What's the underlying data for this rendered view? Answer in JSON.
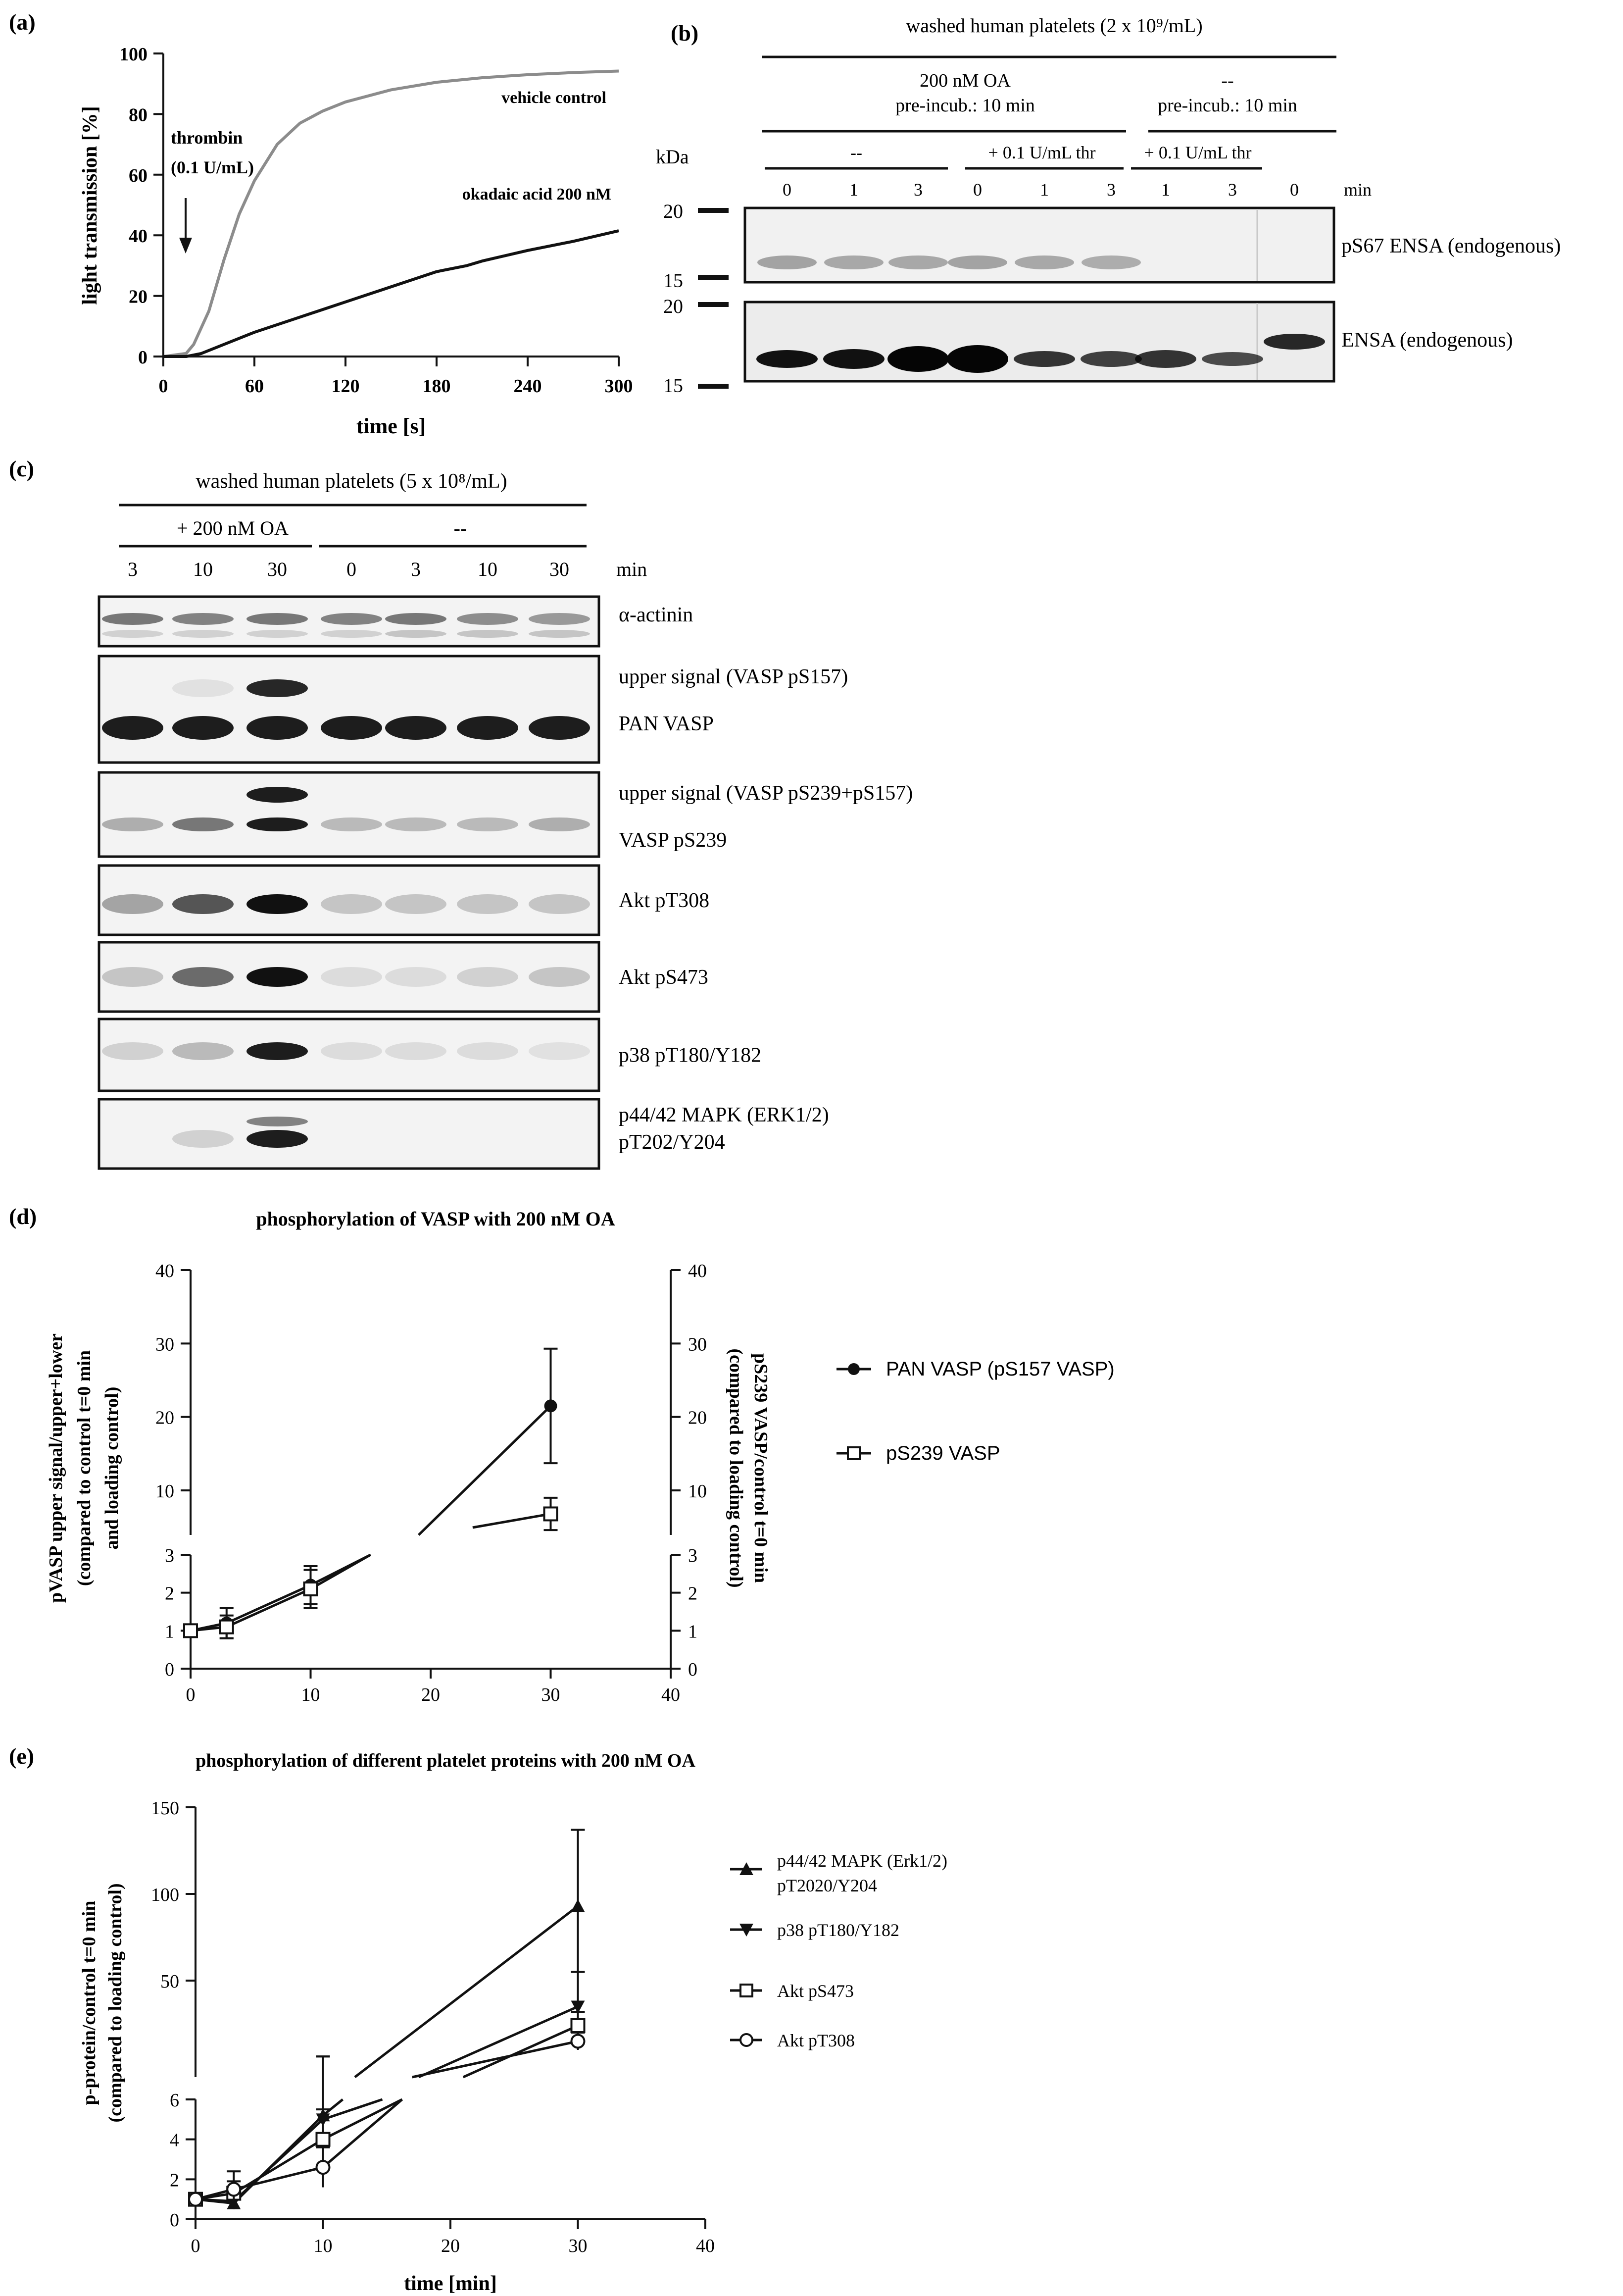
{
  "panel_a": {
    "panel_label": "(a)",
    "ylabel": "light transmission [%]",
    "xlabel": "time [s]",
    "x_ticks": [
      "0",
      "60",
      "120",
      "180",
      "240",
      "300"
    ],
    "y_ticks": [
      "0",
      "20",
      "40",
      "60",
      "80",
      "100"
    ],
    "annot_line1": "thrombin",
    "annot_line2": "(0.1 U/mL)",
    "series": [
      {
        "name": "vehicle control",
        "color": "#8c8c8c"
      },
      {
        "name": "okadaic acid 200 nM",
        "color": "#111111"
      }
    ]
  },
  "panel_b": {
    "panel_label": "(b)",
    "title": "washed human platelets (2 x 10⁹/mL)",
    "group1_l1": "200 nM OA",
    "group1_l2": "pre-incub.: 10 min",
    "group2_l1": "--",
    "group2_l2": "pre-incub.: 10 min",
    "sub1": "--",
    "sub2": "+ 0.1 U/mL thr",
    "sub3": "+ 0.1 U/mL thr",
    "kda_label": "kDa",
    "min_label": "min",
    "lanes": [
      "0",
      "1",
      "3",
      "0",
      "1",
      "3",
      "1",
      "3",
      "0"
    ],
    "markers": [
      "20",
      "15",
      "20",
      "15"
    ],
    "blot1_label": "pS67 ENSA (endogenous)",
    "blot2_label": "ENSA (endogenous)"
  },
  "panel_c": {
    "panel_label": "(c)",
    "title": "washed human platelets (5 x 10⁸/mL)",
    "group1": "+ 200 nM OA",
    "group2": "--",
    "lanes": [
      "3",
      "10",
      "30",
      "0",
      "3",
      "10",
      "30"
    ],
    "min_label": "min",
    "blots": [
      {
        "label1": "α-actinin"
      },
      {
        "label1": "upper signal (VASP pS157)",
        "label2": "PAN VASP"
      },
      {
        "label1": "upper signal (VASP pS239+pS157)",
        "label2": "VASP pS239"
      },
      {
        "label1": "Akt pT308"
      },
      {
        "label1": "Akt pS473"
      },
      {
        "label1": "p38 pT180/Y182"
      },
      {
        "label1": "p44/42 MAPK (ERK1/2)",
        "label2": "pT202/Y204"
      }
    ]
  },
  "panel_d": {
    "panel_label": "(d)",
    "title": "phosphorylation of VASP with 200 nM OA",
    "ylabel_left1": "pVASP upper signal/upper+lower",
    "ylabel_left2": "(compared to control t=0 min",
    "ylabel_left3": "and loading control)",
    "ylabel_right1": "pS239 VASP/control t=0 min",
    "ylabel_right2": "(compared to loading control)",
    "x_ticks": [
      "0",
      "10",
      "20",
      "30",
      "40"
    ],
    "upper_ticks": [
      "10",
      "20",
      "30",
      "40"
    ],
    "lower_ticks": [
      "0",
      "1",
      "2",
      "3"
    ],
    "legend": [
      "PAN VASP (pS157 VASP)",
      "pS239 VASP"
    ]
  },
  "panel_e": {
    "panel_label": "(e)",
    "title": "phosphorylation of different platelet proteins with 200 nM OA",
    "ylabel1": "p-protein/control t=0 min",
    "ylabel2": "(compared to loading control)",
    "xlabel": "time [min]",
    "x_ticks": [
      "0",
      "10",
      "20",
      "30",
      "40"
    ],
    "upper_ticks": [
      "50",
      "100",
      "150"
    ],
    "lower_ticks": [
      "0",
      "2",
      "4",
      "6"
    ],
    "legend": [
      "p44/42 MAPK (Erk1/2)",
      "pT2020/Y204",
      "p38 pT180/Y182",
      "Akt pS473",
      "Akt pT308"
    ]
  },
  "chart_data": [
    {
      "type": "line",
      "xlabel": "time [s]",
      "ylabel": "light transmission [%]",
      "xlim": [
        0,
        300
      ],
      "ylim": [
        0,
        100
      ],
      "series": [
        {
          "name": "vehicle control",
          "x": [
            0,
            15,
            20,
            30,
            40,
            50,
            60,
            75,
            90,
            105,
            120,
            150,
            180,
            210,
            240,
            270,
            300
          ],
          "y": [
            0,
            1,
            4,
            15,
            32,
            47,
            58,
            70,
            77,
            81,
            84,
            88,
            90.5,
            92,
            93,
            93.7,
            94.2
          ]
        },
        {
          "name": "okadaic acid 200 nM",
          "x": [
            0,
            15,
            25,
            40,
            60,
            90,
            120,
            150,
            180,
            200,
            210,
            240,
            270,
            300
          ],
          "y": [
            0,
            0,
            1,
            4,
            8,
            13,
            18,
            23,
            28,
            30,
            31.5,
            35,
            38,
            41.5
          ]
        }
      ]
    },
    {
      "type": "line",
      "title": "phosphorylation of VASP with 200 nM OA",
      "xlim": [
        0,
        40
      ],
      "ylim_lower": [
        0,
        3
      ],
      "ylim_upper": [
        3,
        40
      ],
      "series": [
        {
          "name": "PAN VASP (pS157 VASP)",
          "x": [
            0,
            3,
            10,
            30
          ],
          "y": [
            1,
            1.2,
            2.2,
            21.5
          ],
          "err": [
            0.1,
            0.4,
            0.5,
            7.8
          ]
        },
        {
          "name": "pS239 VASP",
          "x": [
            0,
            3,
            10,
            30
          ],
          "y": [
            1,
            1.1,
            2.1,
            6.8
          ],
          "err": [
            0.1,
            0.3,
            0.5,
            2.2
          ]
        }
      ]
    },
    {
      "type": "line",
      "title": "phosphorylation of different platelet proteins with 200 nM OA",
      "xlabel": "time [min]",
      "ylabel": "p-protein/control t=0 min (compared to loading control)",
      "xlim": [
        0,
        40
      ],
      "ylim_lower": [
        0,
        6
      ],
      "ylim_upper": [
        6,
        150
      ],
      "series": [
        {
          "name": "p44/42 MAPK (Erk1/2) pT2020/Y204",
          "x": [
            0,
            3,
            10,
            30
          ],
          "y": [
            1,
            0.8,
            5.2,
            93
          ],
          "err": [
            0.2,
            0.3,
            1.0,
            44
          ]
        },
        {
          "name": "p38 pT180/Y182",
          "x": [
            0,
            3,
            10,
            30
          ],
          "y": [
            1,
            0.9,
            5.0,
            35
          ],
          "err": [
            0.2,
            0.3,
            1.2,
            20
          ]
        },
        {
          "name": "Akt pS473",
          "x": [
            0,
            3,
            10,
            30
          ],
          "y": [
            1,
            1.3,
            4.0,
            24
          ],
          "err": [
            0.2,
            0.6,
            1.5,
            8
          ]
        },
        {
          "name": "Akt pT308",
          "x": [
            0,
            3,
            10,
            30
          ],
          "y": [
            1,
            1.5,
            2.6,
            15
          ],
          "err": [
            0.2,
            0.9,
            1.0,
            5
          ]
        }
      ]
    }
  ]
}
